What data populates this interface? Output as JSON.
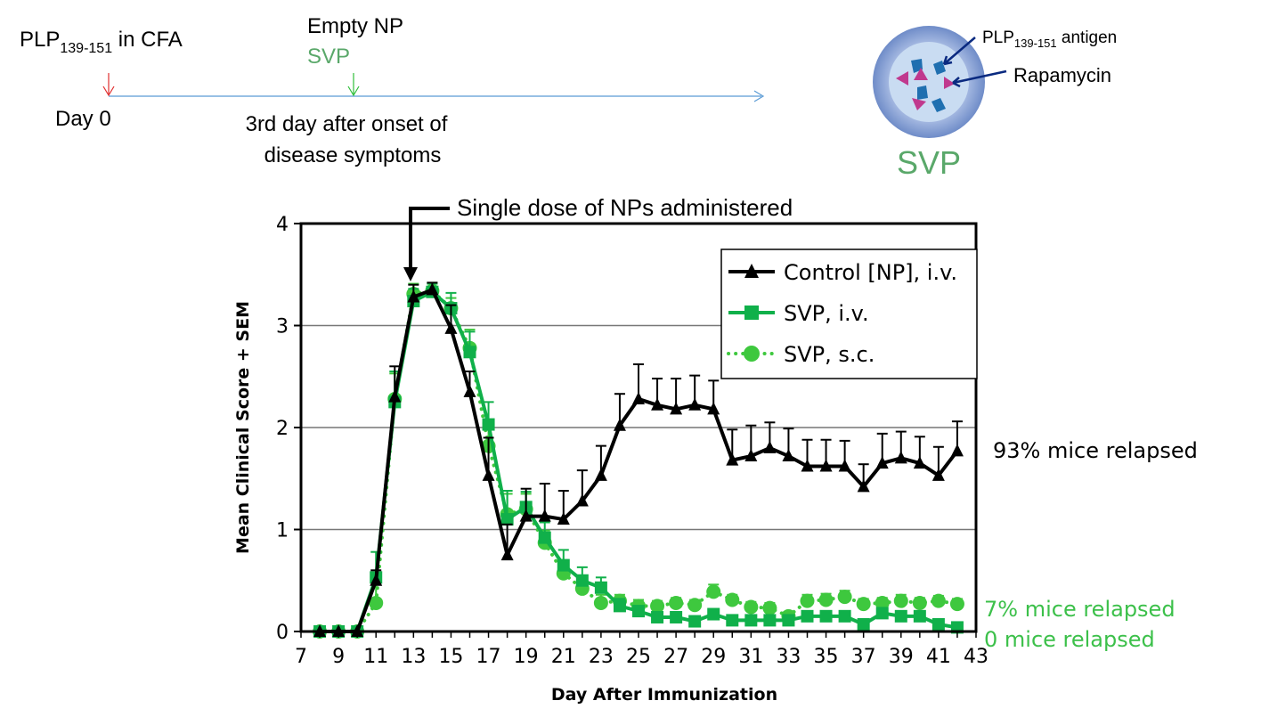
{
  "timeline": {
    "immunization": {
      "prefix": "PLP",
      "sub": "139-151",
      "suffix": " in CFA",
      "day_label": "Day 0",
      "arrow_color": "#e03030"
    },
    "treatment": {
      "line1": "Empty NP",
      "line2": "SVP",
      "line2_color": "#5aa86a",
      "when_line1": "3rd day after onset of",
      "when_line2": "disease symptoms",
      "arrow_color": "#2fbf3a"
    },
    "line_color": "#5b9bd5"
  },
  "svp_diagram": {
    "antigen_prefix": "PLP",
    "antigen_sub": "139-151",
    "antigen_suffix": " antigen",
    "drug_label": "Rapamycin",
    "particle_label": "SVP",
    "colors": {
      "shell": "#8fa8d8",
      "core": "#c9dcf2",
      "antigen": "#1f6fb0",
      "drug": "#c0398e",
      "arrow": "#0a2a80",
      "label": "#5aa86a"
    }
  },
  "annotations": {
    "dose_note": "Single dose of NPs administered",
    "dose_day": 13,
    "relapse_control": "93% mice relapsed",
    "relapse_sc": "7% mice relapsed",
    "relapse_iv": "0 mice relapsed",
    "relapse_green": "#3cc04a"
  },
  "chart_data": {
    "type": "line",
    "xlabel": "Day After Immunization",
    "ylabel": "Mean Clinical Score + SEM",
    "xlim": [
      7,
      43
    ],
    "ylim": [
      0,
      4
    ],
    "xticks": [
      "7",
      "9",
      "11",
      "13",
      "15",
      "17",
      "19",
      "21",
      "23",
      "25",
      "27",
      "29",
      "31",
      "33",
      "35",
      "37",
      "39",
      "41",
      "43"
    ],
    "yticks": [
      "0",
      "1",
      "2",
      "3",
      "4"
    ],
    "grid": "horizontal",
    "legend_position": "top-right",
    "x": [
      8,
      9,
      10,
      11,
      12,
      13,
      14,
      15,
      16,
      17,
      18,
      19,
      20,
      21,
      22,
      23,
      24,
      25,
      26,
      27,
      28,
      29,
      30,
      31,
      32,
      33,
      34,
      35,
      36,
      37,
      38,
      39,
      40,
      41,
      42
    ],
    "series": [
      {
        "name": "Control [NP], i.v.",
        "marker": "triangle",
        "line": "solid",
        "color": "#000000",
        "values": [
          0,
          0,
          0,
          0.5,
          2.3,
          3.28,
          3.35,
          2.97,
          2.35,
          1.53,
          0.75,
          1.13,
          1.13,
          1.1,
          1.28,
          1.53,
          2.02,
          2.28,
          2.22,
          2.18,
          2.22,
          2.18,
          1.68,
          1.72,
          1.8,
          1.72,
          1.62,
          1.62,
          1.62,
          1.42,
          1.65,
          1.7,
          1.65,
          1.53,
          1.77
        ],
        "sem": [
          0,
          0,
          0,
          0.1,
          0.3,
          0.12,
          0.07,
          0.23,
          0.2,
          0.37,
          0.3,
          0.27,
          0.32,
          0.28,
          0.3,
          0.29,
          0.31,
          0.34,
          0.26,
          0.3,
          0.29,
          0.28,
          0.3,
          0.3,
          0.25,
          0.27,
          0.26,
          0.26,
          0.25,
          0.22,
          0.29,
          0.26,
          0.26,
          0.28,
          0.29
        ]
      },
      {
        "name": "SVP, i.v.",
        "marker": "square",
        "line": "solid",
        "color": "#10b04a",
        "values": [
          0,
          0,
          0,
          0.53,
          2.25,
          3.24,
          3.33,
          3.17,
          2.74,
          2.03,
          1.1,
          1.22,
          0.92,
          0.65,
          0.5,
          0.43,
          0.25,
          0.2,
          0.14,
          0.14,
          0.1,
          0.17,
          0.11,
          0.11,
          0.11,
          0.11,
          0.15,
          0.15,
          0.15,
          0.07,
          0.18,
          0.15,
          0.15,
          0.07,
          0.04
        ],
        "sem": [
          0,
          0,
          0,
          0.25,
          0.3,
          0.12,
          0.08,
          0.15,
          0.2,
          0.22,
          0.28,
          0.15,
          0.15,
          0.15,
          0.13,
          0.1,
          0.07,
          0.05,
          0.05,
          0.05,
          0.04,
          0.05,
          0.04,
          0.04,
          0.04,
          0.04,
          0.05,
          0.05,
          0.05,
          0.03,
          0.05,
          0.05,
          0.05,
          0.03,
          0.02
        ]
      },
      {
        "name": "SVP, s.c.",
        "marker": "circle",
        "line": "dotted",
        "color": "#3ec83e",
        "values": [
          0,
          0,
          0,
          0.28,
          2.28,
          3.31,
          3.34,
          3.17,
          2.78,
          1.82,
          1.15,
          1.2,
          0.87,
          0.57,
          0.42,
          0.28,
          0.3,
          0.25,
          0.25,
          0.28,
          0.26,
          0.39,
          0.31,
          0.24,
          0.23,
          0.15,
          0.3,
          0.31,
          0.34,
          0.27,
          0.28,
          0.3,
          0.28,
          0.3,
          0.27
        ],
        "sem": [
          0,
          0,
          0,
          0.2,
          0.25,
          0.1,
          0.08,
          0.1,
          0.18,
          0.2,
          0.2,
          0.15,
          0.12,
          0.12,
          0.1,
          0.08,
          0.06,
          0.06,
          0.05,
          0.05,
          0.05,
          0.07,
          0.05,
          0.05,
          0.05,
          0.04,
          0.06,
          0.06,
          0.06,
          0.05,
          0.05,
          0.06,
          0.05,
          0.05,
          0.05
        ]
      }
    ]
  }
}
